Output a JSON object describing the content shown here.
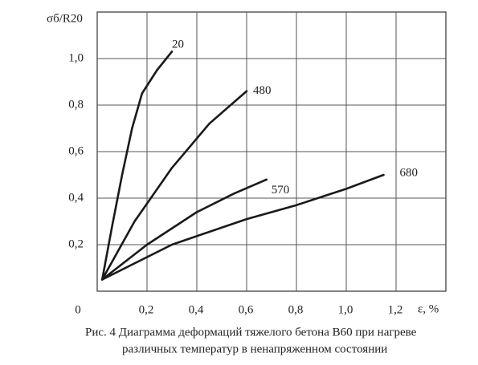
{
  "chart_data": {
    "type": "line",
    "ylabel": "σб/R20",
    "xlabel": "ε, %",
    "caption": [
      "Рис. 4   Диаграмма деформаций тяжелого бетона В60 при нагреве",
      "различных температур в ненапряженном состоянии"
    ],
    "xlim": [
      0,
      1.4
    ],
    "ylim": [
      0,
      1.2
    ],
    "xticks": [
      0,
      {
        "value": 0.2,
        "label": "0,2"
      },
      {
        "value": 0.4,
        "label": "0,4"
      },
      {
        "value": 0.6,
        "label": "0,6"
      },
      {
        "value": 0.8,
        "label": "0,8"
      },
      {
        "value": 1.0,
        "label": "1,0"
      },
      {
        "value": 1.2,
        "label": "1,2"
      }
    ],
    "yticks": [
      {
        "value": 0.2,
        "label": "0,2"
      },
      {
        "value": 0.4,
        "label": "0,4"
      },
      {
        "value": 0.6,
        "label": "0,6"
      },
      {
        "value": 0.8,
        "label": "0,8"
      },
      {
        "value": 1.0,
        "label": "1,0"
      }
    ],
    "grid": true,
    "series": [
      {
        "name": "20",
        "color": "#1a1a1a",
        "x": [
          0.02,
          0.06,
          0.1,
          0.14,
          0.18,
          0.24,
          0.3
        ],
        "values": [
          0.05,
          0.28,
          0.5,
          0.7,
          0.85,
          0.95,
          1.03
        ]
      },
      {
        "name": "480",
        "color": "#1a1a1a",
        "x": [
          0.02,
          0.15,
          0.3,
          0.45,
          0.6
        ],
        "values": [
          0.05,
          0.3,
          0.53,
          0.72,
          0.86
        ]
      },
      {
        "name": "570",
        "color": "#1a1a1a",
        "x": [
          0.02,
          0.2,
          0.4,
          0.55,
          0.68
        ],
        "values": [
          0.05,
          0.2,
          0.34,
          0.42,
          0.48
        ]
      },
      {
        "name": "680",
        "color": "#1a1a1a",
        "x": [
          0.02,
          0.3,
          0.6,
          0.8,
          1.0,
          1.15
        ],
        "values": [
          0.05,
          0.2,
          0.31,
          0.37,
          0.44,
          0.5
        ]
      }
    ]
  }
}
